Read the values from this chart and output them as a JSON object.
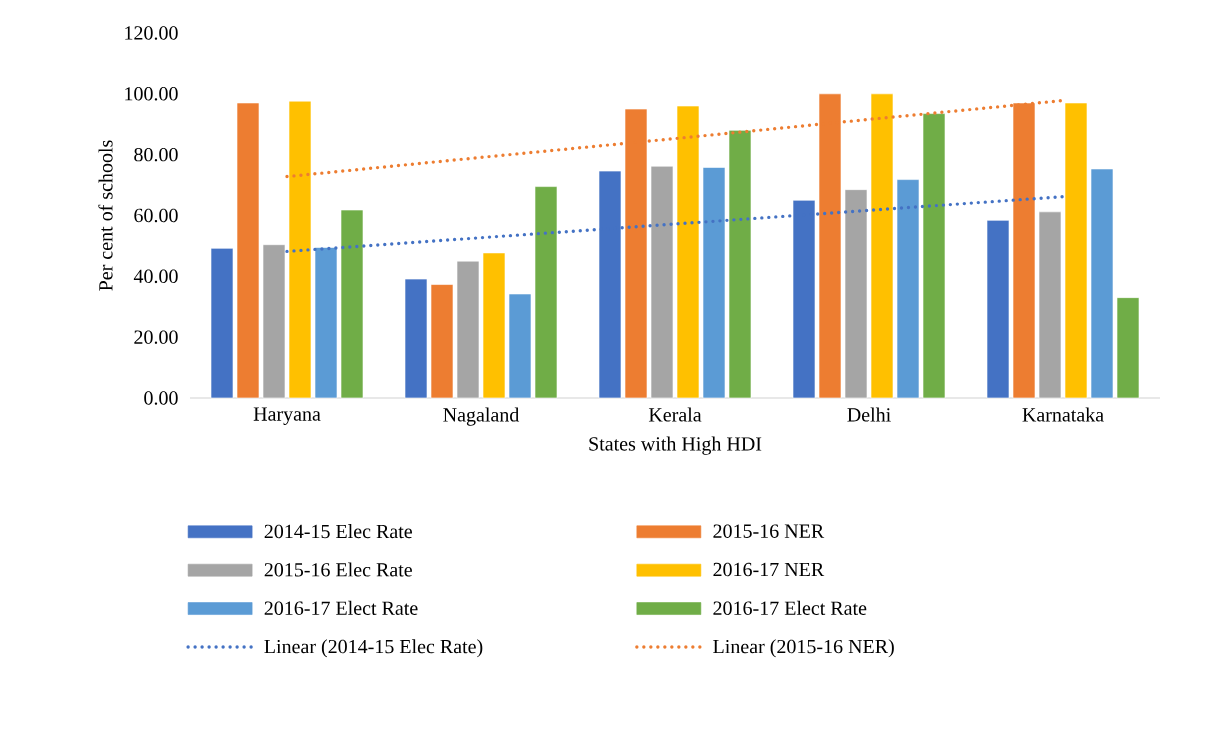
{
  "chart_data": {
    "type": "bar",
    "xlabel": "States with High HDI",
    "ylabel": "Per cent of schools",
    "categories": [
      "Haryana",
      "Nagaland",
      "Kerala",
      "Delhi",
      "Karnataka"
    ],
    "series": [
      {
        "name": "2014-15 Elec Rate",
        "color": "#4472c4",
        "values": [
          49.2,
          39.1,
          74.6,
          65.0,
          58.4
        ]
      },
      {
        "name": "2015-16 NER",
        "color": "#ed7d31",
        "values": [
          97.0,
          37.3,
          95.0,
          100.0,
          97.0
        ]
      },
      {
        "name": "2015-16 Elec Rate",
        "color": "#a5a5a5",
        "values": [
          50.4,
          45.0,
          76.2,
          68.5,
          61.2
        ]
      },
      {
        "name": "2016-17 NER",
        "color": "#ffc000",
        "values": [
          97.6,
          47.7,
          96.0,
          100.0,
          97.0
        ]
      },
      {
        "name": "2016-17 Elect Rate",
        "color": "#5b9bd5",
        "values": [
          49.5,
          34.2,
          75.8,
          71.8,
          75.3
        ]
      },
      {
        "name": "2016-17 Elect Rate",
        "color": "#70ad47",
        "values": [
          61.8,
          69.5,
          88.0,
          93.5,
          33.0
        ]
      },
      {
        "name": "Linear (2014-15 Elec Rate)",
        "type": "line",
        "line_style": "dotted",
        "color": "#4472c4",
        "values": [
          48.2,
          52.7,
          57.2,
          61.7,
          66.2
        ]
      },
      {
        "name": "Linear (2015-16 NER)",
        "type": "line",
        "line_style": "dotted",
        "color": "#ed7d31",
        "values": [
          72.8,
          79.1,
          85.3,
          91.6,
          97.8
        ]
      }
    ],
    "ylim": [
      0,
      120
    ],
    "yticks": [
      {
        "value": 0,
        "label": "0.00"
      },
      {
        "value": 20,
        "label": "20.00"
      },
      {
        "value": 40,
        "label": "40.00"
      },
      {
        "value": 60,
        "label": "60.00"
      },
      {
        "value": 80,
        "label": "80.00"
      },
      {
        "value": 100,
        "label": "100.00"
      },
      {
        "value": 120,
        "label": "120.00"
      }
    ],
    "legend": "bottom"
  }
}
